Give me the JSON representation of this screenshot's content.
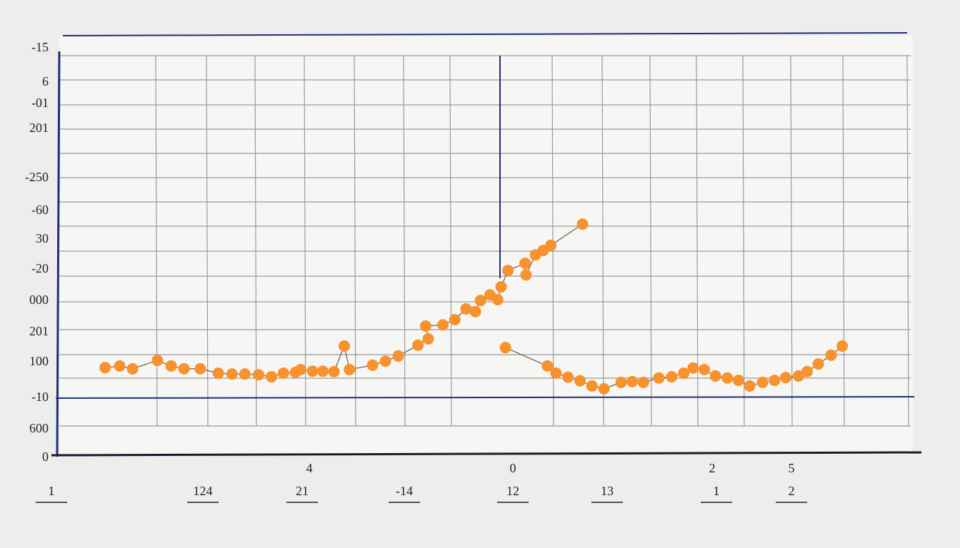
{
  "chart_data": {
    "type": "scatter",
    "y_labels": [
      "-15",
      "6",
      "-01",
      "201",
      "-250",
      "-60",
      "30",
      "-20",
      "000",
      "201",
      "100",
      "-10",
      "600",
      "0"
    ],
    "x_labels": [
      "1",
      "124",
      "21",
      "-14",
      "12",
      "13",
      "1",
      "2"
    ],
    "x_marks": [
      "4",
      "0",
      "2",
      "5"
    ],
    "xlim": [
      0,
      100
    ],
    "ylim": [
      0,
      100
    ],
    "series": [
      {
        "color": "#f7922f",
        "x": [
          5.6,
          7.3,
          8.8,
          11.7,
          13.3,
          14.8,
          16.7,
          18.8,
          20.4,
          21.9,
          23.5,
          25.0,
          26.4,
          27.8,
          28.4,
          29.8,
          31.0,
          32.3,
          33.5,
          34.1,
          36.8,
          38.3,
          39.8,
          42.1,
          43.3,
          43.0,
          45.0,
          46.4,
          47.7,
          48.8,
          49.4,
          50.5,
          51.4,
          51.8,
          52.6,
          54.6,
          54.7,
          55.8,
          56.7,
          57.6,
          61.3
        ],
        "values": [
          21.4,
          21.8,
          21.1,
          23.2,
          21.8,
          21.1,
          21.1,
          20.0,
          19.8,
          19.8,
          19.6,
          19.1,
          20.0,
          20.2,
          20.9,
          20.5,
          20.5,
          20.4,
          26.8,
          20.9,
          22.0,
          23.0,
          24.3,
          27.0,
          28.6,
          31.8,
          32.1,
          33.4,
          36.1,
          35.4,
          38.2,
          39.6,
          38.4,
          41.6,
          45.7,
          47.5,
          44.6,
          49.6,
          50.7,
          52.0,
          57.3
        ]
      },
      {
        "color": "#f7922f",
        "x": [
          52.3,
          57.2,
          58.2,
          59.6,
          61.0,
          62.4,
          63.8,
          65.8,
          67.1,
          68.4,
          70.2,
          71.7,
          73.1,
          74.2,
          75.5,
          76.8,
          78.2,
          79.5,
          80.8,
          82.3,
          83.7,
          85.0,
          86.5,
          87.5,
          88.8,
          90.3,
          91.6
        ],
        "values": [
          26.4,
          21.8,
          20.0,
          19.0,
          18.1,
          16.8,
          16.1,
          17.7,
          17.9,
          17.7,
          18.8,
          19.1,
          20.0,
          21.3,
          20.9,
          19.3,
          18.8,
          18.2,
          16.8,
          17.7,
          18.2,
          18.9,
          19.3,
          20.4,
          22.3,
          24.5,
          26.8
        ]
      }
    ]
  }
}
